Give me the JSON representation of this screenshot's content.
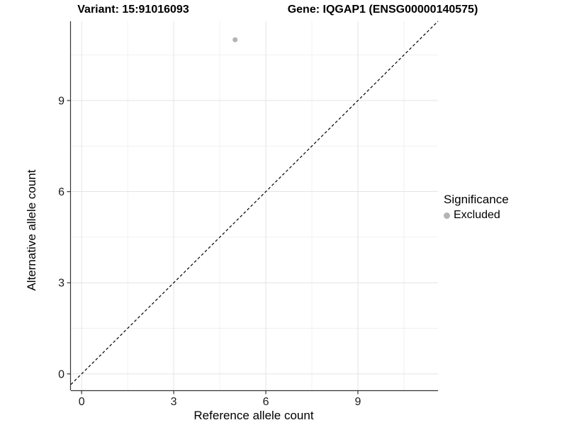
{
  "chart_data": {
    "type": "scatter",
    "title_left": "Variant: 15:91016093",
    "title_right": "Gene: IQGAP1 (ENSG00000140575)",
    "xlabel": "Reference allele count",
    "ylabel": "Alternative allele count",
    "xlim": [
      -0.35,
      11.61
    ],
    "ylim": [
      -0.54,
      11.61
    ],
    "x_ticks": [
      0,
      3,
      6,
      9
    ],
    "y_ticks": [
      0,
      3,
      6,
      9
    ],
    "x_minor_ticks": [
      1.5,
      4.5,
      7.5,
      10.5
    ],
    "y_minor_ticks": [
      1.5,
      4.5,
      7.5,
      10.5
    ],
    "grid": "major+minor",
    "reference_line": {
      "kind": "identity",
      "style": "dashed",
      "color": "#000000"
    },
    "points": [
      {
        "x": 5,
        "y": 11,
        "significance": "Excluded",
        "color": "#b4b4b4"
      }
    ],
    "legend": {
      "title": "Significance",
      "position": "right",
      "entries": [
        {
          "label": "Excluded",
          "color": "#b4b4b4"
        }
      ]
    }
  },
  "colors": {
    "grid_major": "#e4e4e4",
    "grid_minor": "#f0f0f0",
    "axis_line": "#333333",
    "tick_label": "#1a1a1a",
    "point": "#b4b4b4"
  }
}
